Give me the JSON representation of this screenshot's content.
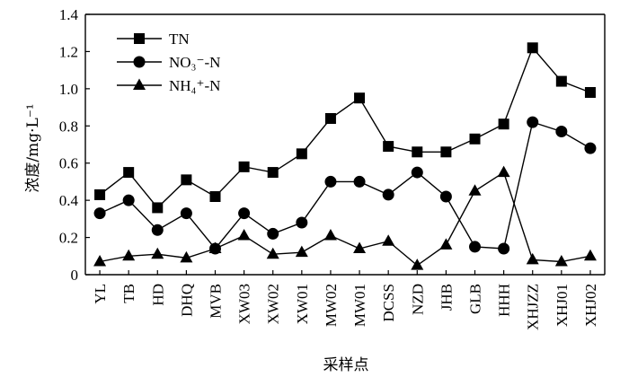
{
  "chart_data": {
    "type": "line",
    "xlabel": "采样点",
    "ylabel": "浓度/mg·L⁻¹",
    "ylim": [
      0,
      1.4
    ],
    "yticks": [
      "0",
      "0.2",
      "0.4",
      "0.6",
      "0.8",
      "1.0",
      "1.2",
      "1.4"
    ],
    "grid": false,
    "legend_position": "top-left",
    "categories": [
      "YL",
      "TB",
      "HD",
      "DHQ",
      "MVB",
      "XW03",
      "XW02",
      "XW01",
      "MW02",
      "MW01",
      "DCSS",
      "NZD",
      "JHB",
      "GLB",
      "HHH",
      "XHJZZ",
      "XHJ01",
      "XHJ02"
    ],
    "series": [
      {
        "name": "TN",
        "marker": "square",
        "values": [
          0.43,
          0.55,
          0.36,
          0.51,
          0.42,
          0.58,
          0.55,
          0.65,
          0.84,
          0.95,
          0.69,
          0.66,
          0.66,
          0.73,
          0.81,
          1.22,
          1.04,
          0.98
        ]
      },
      {
        "name": "NO₃⁻-N",
        "marker": "circle",
        "values": [
          0.33,
          0.4,
          0.24,
          0.33,
          0.14,
          0.33,
          0.22,
          0.28,
          0.5,
          0.5,
          0.43,
          0.55,
          0.42,
          0.15,
          0.14,
          0.82,
          0.77,
          0.68
        ]
      },
      {
        "name": "NH₄⁺-N",
        "marker": "triangle",
        "values": [
          0.07,
          0.1,
          0.11,
          0.09,
          0.14,
          0.21,
          0.11,
          0.12,
          0.21,
          0.14,
          0.18,
          0.05,
          0.16,
          0.45,
          0.55,
          0.08,
          0.07,
          0.1
        ]
      }
    ]
  }
}
